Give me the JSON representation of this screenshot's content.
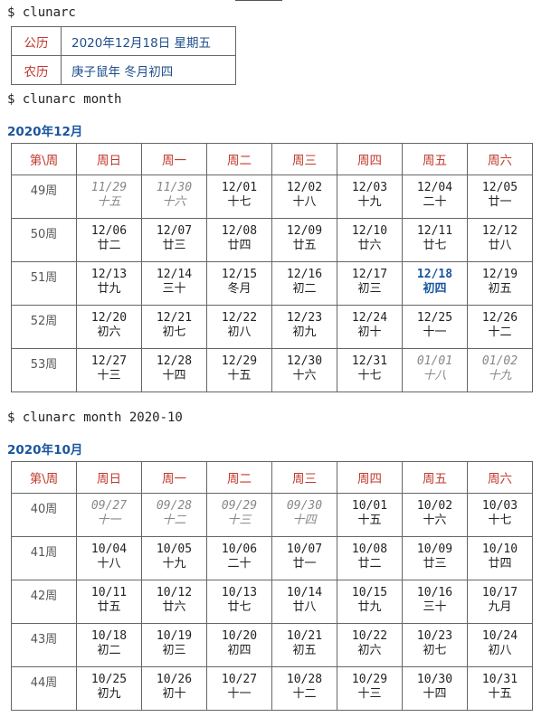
{
  "cmd1": "$ clunarc",
  "today": {
    "solar_label": "公历",
    "solar_value": "2020年12月18日  星期五",
    "lunar_label": "农历",
    "lunar_value": "庚子鼠年  冬月初四"
  },
  "cmd2": "$ clunarc month",
  "cmd3": "$ clunarc month 2020-10",
  "calendars": [
    {
      "title": "2020年12月",
      "headers": [
        "第\\周",
        "周日",
        "周一",
        "周二",
        "周三",
        "周四",
        "周五",
        "周六"
      ],
      "weeks": [
        {
          "week": "49周",
          "days": [
            {
              "d": "11/29",
              "l": "十五",
              "other": true
            },
            {
              "d": "11/30",
              "l": "十六",
              "other": true
            },
            {
              "d": "12/01",
              "l": "十七"
            },
            {
              "d": "12/02",
              "l": "十八"
            },
            {
              "d": "12/03",
              "l": "十九"
            },
            {
              "d": "12/04",
              "l": "二十"
            },
            {
              "d": "12/05",
              "l": "廿一"
            }
          ]
        },
        {
          "week": "50周",
          "days": [
            {
              "d": "12/06",
              "l": "廿二"
            },
            {
              "d": "12/07",
              "l": "廿三"
            },
            {
              "d": "12/08",
              "l": "廿四"
            },
            {
              "d": "12/09",
              "l": "廿五"
            },
            {
              "d": "12/10",
              "l": "廿六"
            },
            {
              "d": "12/11",
              "l": "廿七"
            },
            {
              "d": "12/12",
              "l": "廿八"
            }
          ]
        },
        {
          "week": "51周",
          "days": [
            {
              "d": "12/13",
              "l": "廿九"
            },
            {
              "d": "12/14",
              "l": "三十"
            },
            {
              "d": "12/15",
              "l": "冬月"
            },
            {
              "d": "12/16",
              "l": "初二"
            },
            {
              "d": "12/17",
              "l": "初三"
            },
            {
              "d": "12/18",
              "l": "初四",
              "today": true
            },
            {
              "d": "12/19",
              "l": "初五"
            }
          ]
        },
        {
          "week": "52周",
          "days": [
            {
              "d": "12/20",
              "l": "初六"
            },
            {
              "d": "12/21",
              "l": "初七"
            },
            {
              "d": "12/22",
              "l": "初八"
            },
            {
              "d": "12/23",
              "l": "初九"
            },
            {
              "d": "12/24",
              "l": "初十"
            },
            {
              "d": "12/25",
              "l": "十一"
            },
            {
              "d": "12/26",
              "l": "十二"
            }
          ]
        },
        {
          "week": "53周",
          "days": [
            {
              "d": "12/27",
              "l": "十三"
            },
            {
              "d": "12/28",
              "l": "十四"
            },
            {
              "d": "12/29",
              "l": "十五"
            },
            {
              "d": "12/30",
              "l": "十六"
            },
            {
              "d": "12/31",
              "l": "十七"
            },
            {
              "d": "01/01",
              "l": "十八",
              "other": true
            },
            {
              "d": "01/02",
              "l": "十九",
              "other": true
            }
          ]
        }
      ]
    },
    {
      "title": "2020年10月",
      "headers": [
        "第\\周",
        "周日",
        "周一",
        "周二",
        "周三",
        "周四",
        "周五",
        "周六"
      ],
      "weeks": [
        {
          "week": "40周",
          "days": [
            {
              "d": "09/27",
              "l": "十一",
              "other": true
            },
            {
              "d": "09/28",
              "l": "十二",
              "other": true
            },
            {
              "d": "09/29",
              "l": "十三",
              "other": true
            },
            {
              "d": "09/30",
              "l": "十四",
              "other": true
            },
            {
              "d": "10/01",
              "l": "十五"
            },
            {
              "d": "10/02",
              "l": "十六"
            },
            {
              "d": "10/03",
              "l": "十七"
            }
          ]
        },
        {
          "week": "41周",
          "days": [
            {
              "d": "10/04",
              "l": "十八"
            },
            {
              "d": "10/05",
              "l": "十九"
            },
            {
              "d": "10/06",
              "l": "二十"
            },
            {
              "d": "10/07",
              "l": "廿一"
            },
            {
              "d": "10/08",
              "l": "廿二"
            },
            {
              "d": "10/09",
              "l": "廿三"
            },
            {
              "d": "10/10",
              "l": "廿四"
            }
          ]
        },
        {
          "week": "42周",
          "days": [
            {
              "d": "10/11",
              "l": "廿五"
            },
            {
              "d": "10/12",
              "l": "廿六"
            },
            {
              "d": "10/13",
              "l": "廿七"
            },
            {
              "d": "10/14",
              "l": "廿八"
            },
            {
              "d": "10/15",
              "l": "廿九"
            },
            {
              "d": "10/16",
              "l": "三十"
            },
            {
              "d": "10/17",
              "l": "九月"
            }
          ]
        },
        {
          "week": "43周",
          "days": [
            {
              "d": "10/18",
              "l": "初二"
            },
            {
              "d": "10/19",
              "l": "初三"
            },
            {
              "d": "10/20",
              "l": "初四"
            },
            {
              "d": "10/21",
              "l": "初五"
            },
            {
              "d": "10/22",
              "l": "初六"
            },
            {
              "d": "10/23",
              "l": "初七"
            },
            {
              "d": "10/24",
              "l": "初八"
            }
          ]
        },
        {
          "week": "44周",
          "days": [
            {
              "d": "10/25",
              "l": "初九"
            },
            {
              "d": "10/26",
              "l": "初十"
            },
            {
              "d": "10/27",
              "l": "十一"
            },
            {
              "d": "10/28",
              "l": "十二"
            },
            {
              "d": "10/29",
              "l": "十三"
            },
            {
              "d": "10/30",
              "l": "十四"
            },
            {
              "d": "10/31",
              "l": "十五"
            }
          ]
        }
      ]
    }
  ]
}
